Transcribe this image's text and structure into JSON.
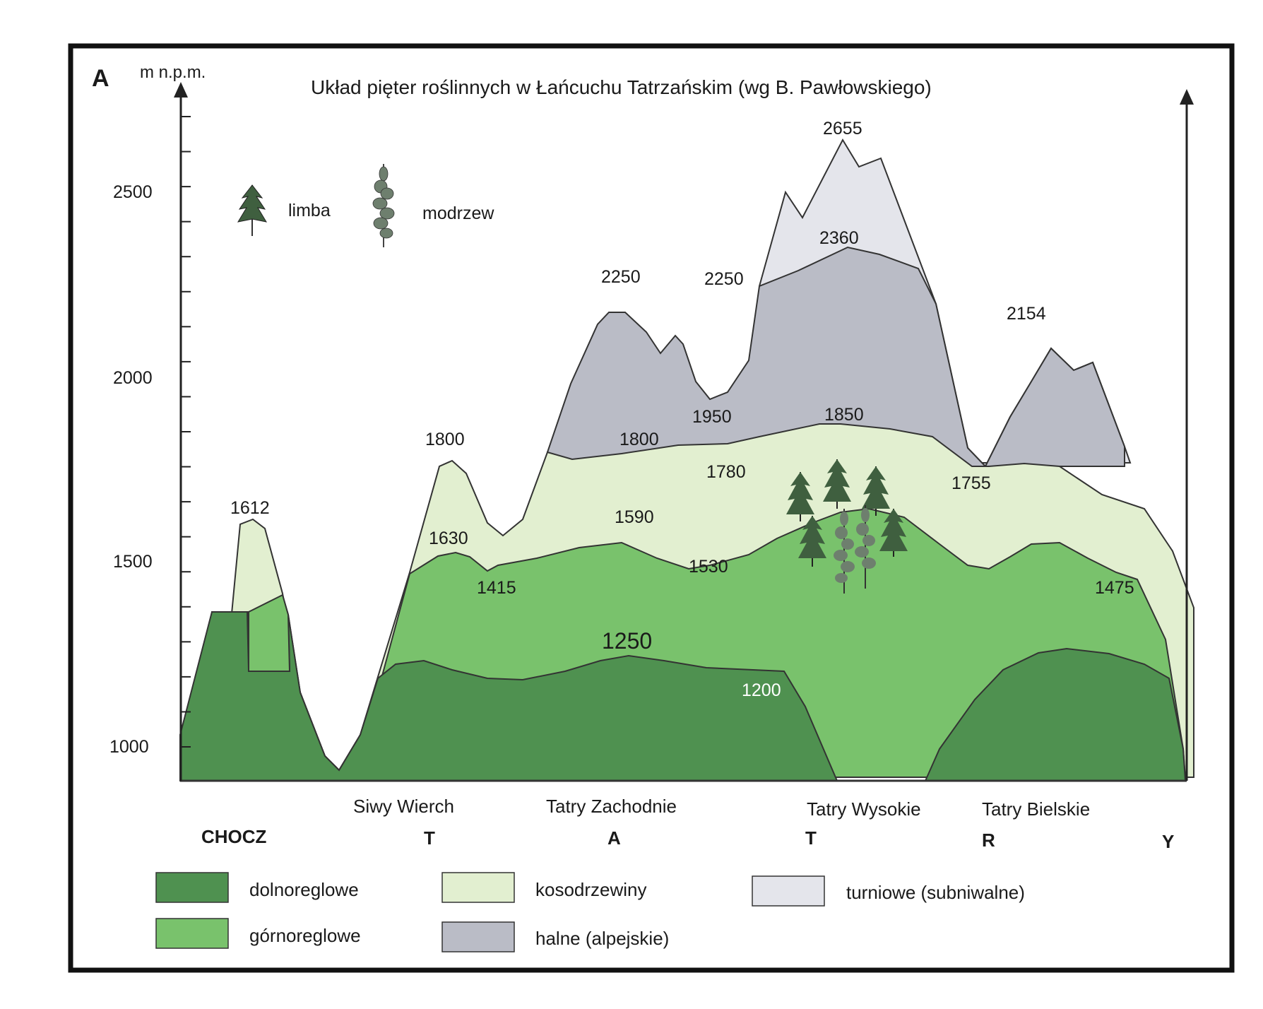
{
  "panel_letter": "A",
  "title": "Układ pięter roślinnych w Łańcuchu Tatrzańskim (wg B. Pawłowskiego)",
  "y_axis": {
    "label": "m n.p.m.",
    "ticks": [
      "2500",
      "2000",
      "1500",
      "1000"
    ]
  },
  "tree_labels": {
    "limba": "limba",
    "modrzew": "modrzew"
  },
  "elevation_labels": {
    "chocz_peak": "1612",
    "siwy_peak": "1800",
    "siwy_gorno": "1630",
    "siwy_saddle": "1415",
    "zach_peak_1": "2250",
    "zach_peak_2": "2250",
    "zach_kosodrz": "1800",
    "zach_gorno": "1590",
    "zach_saddle_halne": "1950",
    "zach_saddle_kos": "1780",
    "zach_saddle_gorno": "1530",
    "dolno_1250": "1250",
    "dolno_1200": "1200",
    "wys_peak": "2655",
    "wys_halne": "2360",
    "wys_kosodrz": "1850",
    "biel_peak": "2154",
    "biel_saddle": "1755",
    "biel_end": "1475"
  },
  "region_labels": {
    "siwy": "Siwy Wierch",
    "zachodnie": "Tatry Zachodnie",
    "wysokie": "Tatry Wysokie",
    "bielskie": "Tatry Bielskie"
  },
  "bottom_letters": {
    "chocz": "CHOCZ",
    "t1": "T",
    "a": "A",
    "t2": "T",
    "r": "R",
    "y": "Y"
  },
  "legend": [
    {
      "key": "dolno",
      "label": "dolnoreglowe",
      "color": "#4f9150"
    },
    {
      "key": "gorno",
      "label": "górnoreglowe",
      "color": "#79c26c"
    },
    {
      "key": "koso",
      "label": "kosodrzewiny",
      "color": "#e2efd0"
    },
    {
      "key": "halne",
      "label": "halne (alpejskie)",
      "color": "#babcc6"
    },
    {
      "key": "turn",
      "label": "turniowe (subniwalne)",
      "color": "#e4e5eb"
    }
  ],
  "colors": {
    "dolno": "#4f9150",
    "gorno": "#79c26c",
    "koso": "#e2efd0",
    "halne": "#babcc6",
    "turn": "#e4e5eb",
    "outline": "#333333",
    "frame": "#111111"
  }
}
